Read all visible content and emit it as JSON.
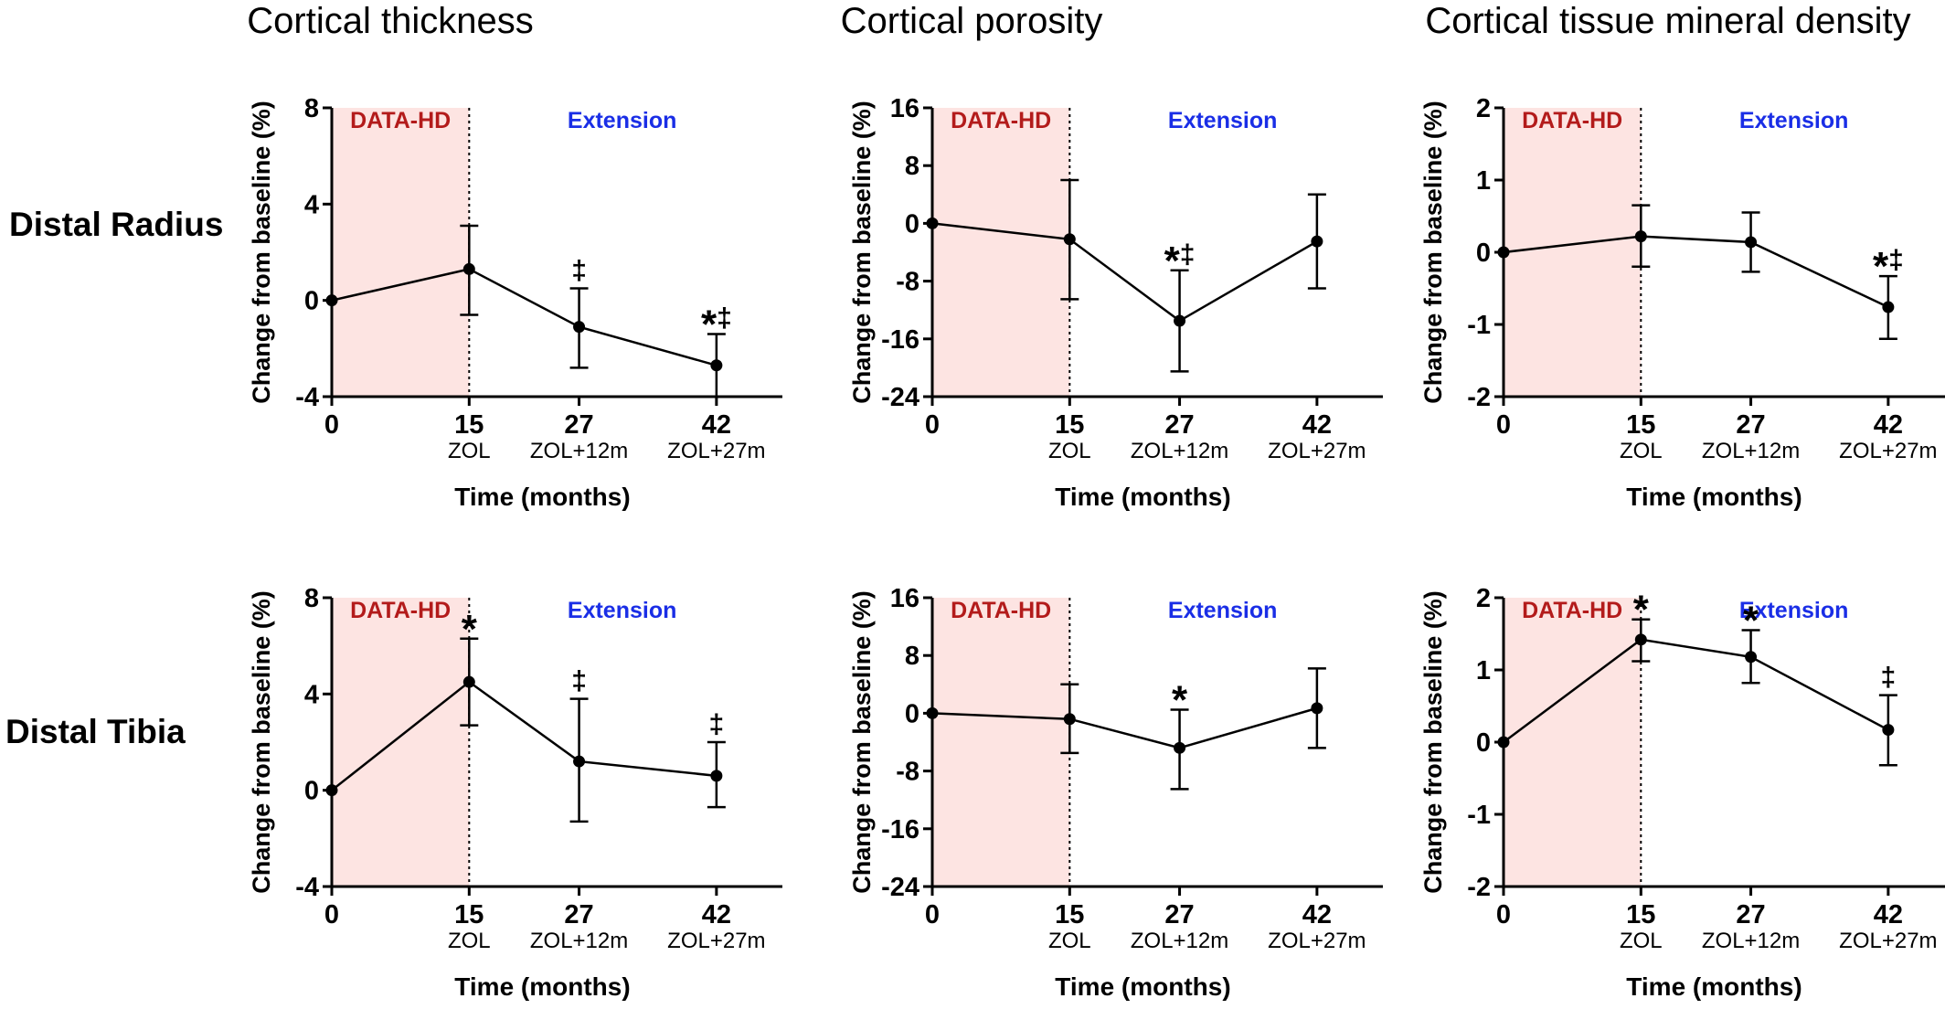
{
  "column_titles": [
    "Cortical thickness",
    "Cortical porosity",
    "Cortical tissue mineral density"
  ],
  "row_labels": [
    "Distal Radius",
    "Distal Tibia"
  ],
  "shade_labels": {
    "left": "DATA-HD",
    "right": "Extension"
  },
  "colors": {
    "shade": "#fde4e2",
    "data_hd_text": "#b31b1b",
    "extension_text": "#1a2ee6",
    "line": "#000000"
  },
  "chart_data": [
    {
      "type": "line",
      "row": 0,
      "col": 0,
      "xlabel": "Time (months)",
      "ylabel": "Change from baseline (%)",
      "x": [
        0,
        15,
        27,
        42
      ],
      "x_sublabels": [
        "",
        "ZOL",
        "ZOL+12m",
        "ZOL+27m"
      ],
      "ylim": [
        -4,
        8
      ],
      "yticks": [
        -4,
        0,
        4,
        8
      ],
      "ytick_labels": [
        "-4",
        "0",
        "4",
        "8"
      ],
      "y": [
        0,
        1.3,
        -1.1,
        -2.7
      ],
      "err_up": [
        null,
        3.1,
        0.5,
        -1.4
      ],
      "err_low": [
        null,
        -0.6,
        -2.8,
        -4.0
      ],
      "marks": [
        "",
        "",
        "‡",
        "*‡"
      ]
    },
    {
      "type": "line",
      "row": 0,
      "col": 1,
      "xlabel": "Time (months)",
      "ylabel": "Change from baseline (%)",
      "x": [
        0,
        15,
        27,
        42
      ],
      "x_sublabels": [
        "",
        "ZOL",
        "ZOL+12m",
        "ZOL+27m"
      ],
      "ylim": [
        -24,
        16
      ],
      "yticks": [
        -24,
        -16,
        -8,
        0,
        8,
        16
      ],
      "ytick_labels": [
        "-24",
        "-16",
        "-8",
        "0",
        "8",
        "16"
      ],
      "y": [
        0,
        -2.2,
        -13.5,
        -2.5
      ],
      "err_up": [
        null,
        6.0,
        -6.5,
        4.0
      ],
      "err_low": [
        null,
        -10.5,
        -20.5,
        -9.0
      ],
      "marks": [
        "",
        "",
        "*‡",
        ""
      ]
    },
    {
      "type": "line",
      "row": 0,
      "col": 2,
      "xlabel": "Time (months)",
      "ylabel": "Change from baseline (%)",
      "x": [
        0,
        15,
        27,
        42
      ],
      "x_sublabels": [
        "",
        "ZOL",
        "ZOL+12m",
        "ZOL+27m"
      ],
      "ylim": [
        -2,
        2
      ],
      "yticks": [
        -2,
        -1,
        0,
        1,
        2
      ],
      "ytick_labels": [
        "-2",
        "-1",
        "0",
        "1",
        "2"
      ],
      "y": [
        0,
        0.22,
        0.14,
        -0.76
      ],
      "err_up": [
        null,
        0.65,
        0.55,
        -0.33
      ],
      "err_low": [
        null,
        -0.2,
        -0.27,
        -1.2
      ],
      "marks": [
        "",
        "",
        "",
        "*‡"
      ]
    },
    {
      "type": "line",
      "row": 1,
      "col": 0,
      "xlabel": "Time (months)",
      "ylabel": "Change from baseline (%)",
      "x": [
        0,
        15,
        27,
        42
      ],
      "x_sublabels": [
        "",
        "ZOL",
        "ZOL+12m",
        "ZOL+27m"
      ],
      "ylim": [
        -4,
        8
      ],
      "yticks": [
        -4,
        0,
        4,
        8
      ],
      "ytick_labels": [
        "-4",
        "0",
        "4",
        "8"
      ],
      "y": [
        0,
        4.5,
        1.2,
        0.6
      ],
      "err_up": [
        null,
        6.3,
        3.8,
        2.0
      ],
      "err_low": [
        null,
        2.7,
        -1.3,
        -0.7
      ],
      "marks": [
        "",
        "*",
        "‡",
        "‡"
      ]
    },
    {
      "type": "line",
      "row": 1,
      "col": 1,
      "xlabel": "Time (months)",
      "ylabel": "Change from baseline (%)",
      "x": [
        0,
        15,
        27,
        42
      ],
      "x_sublabels": [
        "",
        "ZOL",
        "ZOL+12m",
        "ZOL+27m"
      ],
      "ylim": [
        -24,
        16
      ],
      "yticks": [
        -24,
        -16,
        -8,
        0,
        8,
        16
      ],
      "ytick_labels": [
        "-24",
        "-16",
        "-8",
        "0",
        "8",
        "16"
      ],
      "y": [
        0,
        -0.8,
        -4.8,
        0.7
      ],
      "err_up": [
        null,
        4.0,
        0.5,
        6.2
      ],
      "err_low": [
        null,
        -5.5,
        -10.5,
        -4.8
      ],
      "marks": [
        "",
        "",
        "*",
        ""
      ]
    },
    {
      "type": "line",
      "row": 1,
      "col": 2,
      "xlabel": "Time (months)",
      "ylabel": "Change from baseline (%)",
      "x": [
        0,
        15,
        27,
        42
      ],
      "x_sublabels": [
        "",
        "ZOL",
        "ZOL+12m",
        "ZOL+27m"
      ],
      "ylim": [
        -2,
        2
      ],
      "yticks": [
        -2,
        -1,
        0,
        1,
        2
      ],
      "ytick_labels": [
        "-2",
        "-1",
        "0",
        "1",
        "2"
      ],
      "y": [
        0,
        1.42,
        1.18,
        0.17
      ],
      "err_up": [
        null,
        1.7,
        1.55,
        0.65
      ],
      "err_low": [
        null,
        1.12,
        0.82,
        -0.32
      ],
      "marks": [
        "",
        "*",
        "*",
        "‡"
      ]
    }
  ]
}
